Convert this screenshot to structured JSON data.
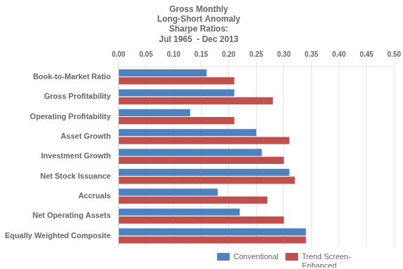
{
  "chart_data": {
    "type": "bar",
    "orientation": "horizontal",
    "title": "Gross Monthly\nLong-Short Anomaly\nSharpe Ratios:\nJul 1965  - Dec 2013",
    "categories": [
      "Equally Weighted Composite",
      "Net Operating Assets",
      "Accruals",
      "Net Stock Issuance",
      "Investment Growth",
      "Asset Growth",
      "Operating Profitability",
      "Gross Profitability",
      "Book-to-Market Ratio"
    ],
    "series": [
      {
        "name": "Conventional",
        "color": "#4F81BD",
        "values": [
          0.34,
          0.22,
          0.18,
          0.31,
          0.26,
          0.25,
          0.13,
          0.21,
          0.16
        ]
      },
      {
        "name": "Trend Screen-\nEnhanced",
        "color": "#C0504D",
        "values": [
          0.34,
          0.3,
          0.27,
          0.32,
          0.3,
          0.31,
          0.21,
          0.28,
          0.21
        ]
      }
    ],
    "xlim": [
      0.0,
      0.5
    ],
    "xticks": [
      {
        "value": 0,
        "label": "0.00"
      },
      0.05,
      {
        "value": 0.1,
        "label": "0.10"
      },
      0.15,
      {
        "value": 0.2,
        "label": "0.20"
      },
      0.25,
      {
        "value": 0.3,
        "label": "0.30"
      },
      0.35,
      {
        "value": 0.4,
        "label": "0.40"
      },
      0.45,
      {
        "value": 0.5,
        "label": "0.50"
      }
    ],
    "grid": true,
    "legend": "lower right"
  }
}
